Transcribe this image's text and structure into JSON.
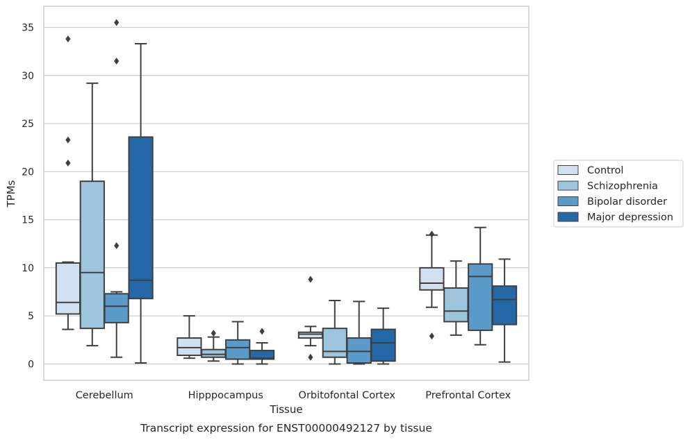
{
  "chart_data": {
    "type": "boxplot",
    "title": "Transcript expression for ENST00000492127 by tissue",
    "xlabel": "Tissue",
    "ylabel": "TPMs",
    "ylim": [
      -1.7,
      37.2
    ],
    "yticks": [
      0,
      5,
      10,
      15,
      20,
      25,
      30,
      35
    ],
    "grid": "horizontal",
    "legend_position": "right",
    "categories": [
      "Cerebellum",
      "Hipppocampus",
      "Orbitofontal Cortex",
      "Prefrontal Cortex"
    ],
    "series": [
      {
        "name": "Control",
        "color": "#d0e0f0",
        "boxes": [
          {
            "whisker_low": 3.6,
            "q1": 5.2,
            "median": 6.4,
            "q3": 10.5,
            "whisker_high": 10.6,
            "outliers": [
              20.9,
              23.3,
              33.8
            ]
          },
          {
            "whisker_low": 0.6,
            "q1": 0.9,
            "median": 1.7,
            "q3": 2.7,
            "whisker_high": 5.0,
            "outliers": []
          },
          {
            "whisker_low": 1.9,
            "q1": 2.7,
            "median": 3.1,
            "q3": 3.3,
            "whisker_high": 3.9,
            "outliers": [
              0.7,
              8.8
            ]
          },
          {
            "whisker_low": 5.9,
            "q1": 7.7,
            "median": 8.4,
            "q3": 10.0,
            "whisker_high": 13.4,
            "outliers": [
              2.9,
              13.5
            ]
          }
        ]
      },
      {
        "name": "Schizophrenia",
        "color": "#9ec5de",
        "boxes": [
          {
            "whisker_low": 1.9,
            "q1": 3.7,
            "median": 9.5,
            "q3": 19.0,
            "whisker_high": 29.2,
            "outliers": []
          },
          {
            "whisker_low": 0.3,
            "q1": 0.7,
            "median": 1.0,
            "q3": 1.5,
            "whisker_high": 2.8,
            "outliers": [
              3.2
            ]
          },
          {
            "whisker_low": 0.0,
            "q1": 0.7,
            "median": 1.3,
            "q3": 3.7,
            "whisker_high": 6.6,
            "outliers": []
          },
          {
            "whisker_low": 3.0,
            "q1": 4.4,
            "median": 5.5,
            "q3": 7.9,
            "whisker_high": 10.7,
            "outliers": []
          }
        ]
      },
      {
        "name": "Bipolar disorder",
        "color": "#5b9bc9",
        "boxes": [
          {
            "whisker_low": 0.7,
            "q1": 4.3,
            "median": 6.0,
            "q3": 7.3,
            "whisker_high": 7.5,
            "outliers": [
              12.3,
              31.5,
              35.5
            ]
          },
          {
            "whisker_low": 0.0,
            "q1": 0.5,
            "median": 1.7,
            "q3": 2.5,
            "whisker_high": 4.4,
            "outliers": []
          },
          {
            "whisker_low": 0.0,
            "q1": 0.1,
            "median": 1.3,
            "q3": 2.7,
            "whisker_high": 6.5,
            "outliers": []
          },
          {
            "whisker_low": 2.0,
            "q1": 3.5,
            "median": 9.1,
            "q3": 10.4,
            "whisker_high": 14.2,
            "outliers": []
          }
        ]
      },
      {
        "name": "Major depression",
        "color": "#2468a8",
        "boxes": [
          {
            "whisker_low": 0.1,
            "q1": 6.8,
            "median": 8.7,
            "q3": 23.6,
            "whisker_high": 33.3,
            "outliers": []
          },
          {
            "whisker_low": 0.0,
            "q1": 0.5,
            "median": 0.6,
            "q3": 1.4,
            "whisker_high": 2.2,
            "outliers": [
              3.4
            ]
          },
          {
            "whisker_low": 0.0,
            "q1": 0.3,
            "median": 2.2,
            "q3": 3.6,
            "whisker_high": 5.8,
            "outliers": []
          },
          {
            "whisker_low": 0.2,
            "q1": 4.1,
            "median": 6.7,
            "q3": 8.1,
            "whisker_high": 10.9,
            "outliers": []
          }
        ]
      }
    ]
  },
  "colors": {
    "grid": "#cccccc",
    "frame": "#cccccc",
    "box_edge": "#3f3f3f",
    "text": "#262626"
  }
}
